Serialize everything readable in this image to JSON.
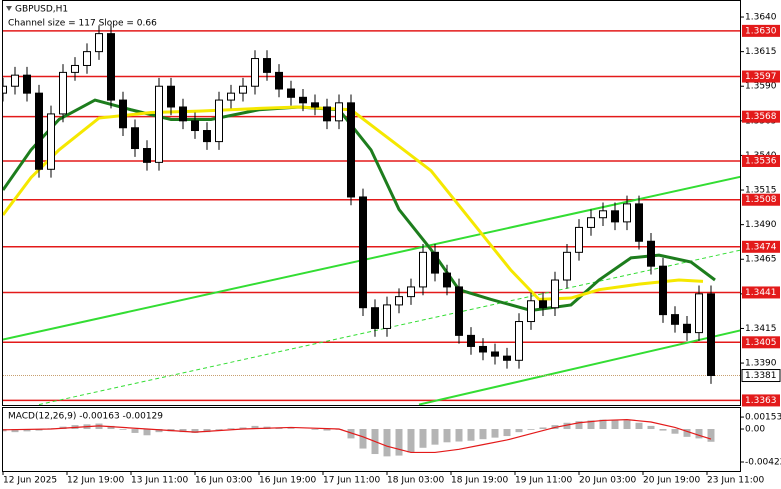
{
  "chart_data": [
    {
      "type": "candlestick",
      "title": "GBPUSD,H1",
      "subtitle": "Channel size = 117 Slope = 0.66",
      "x": [
        0,
        3,
        6,
        9,
        12,
        15,
        18,
        21,
        24,
        27,
        30,
        33,
        36,
        39,
        42,
        45,
        48,
        51,
        54,
        57,
        60,
        63,
        66,
        69,
        72,
        75,
        78,
        81,
        84,
        87,
        90,
        93,
        96,
        99,
        102,
        105,
        108,
        111,
        114,
        117,
        120,
        123,
        126,
        129,
        132,
        135,
        138,
        141,
        144,
        147,
        150,
        153,
        156,
        159,
        162,
        165,
        168,
        171,
        174,
        177
      ],
      "open": [
        1.3585,
        1.359,
        1.3598,
        1.3585,
        1.353,
        1.357,
        1.36,
        1.3605,
        1.3615,
        1.3628,
        1.358,
        1.356,
        1.3545,
        1.3535,
        1.359,
        1.3575,
        1.3565,
        1.3558,
        1.355,
        1.358,
        1.3585,
        1.359,
        1.361,
        1.36,
        1.3588,
        1.3582,
        1.3578,
        1.3575,
        1.3565,
        1.3578,
        1.351,
        1.343,
        1.3415,
        1.3432,
        1.3438,
        1.3445,
        1.347,
        1.3455,
        1.3445,
        1.341,
        1.3402,
        1.3398,
        1.3395,
        1.3392,
        1.342,
        1.3435,
        1.343,
        1.345,
        1.347,
        1.3488,
        1.3495,
        1.35,
        1.3492,
        1.3505,
        1.3478,
        1.346,
        1.3425,
        1.3418,
        1.3412,
        1.344
      ],
      "high": [
        1.3596,
        1.3604,
        1.3604,
        1.3591,
        1.3576,
        1.3606,
        1.3611,
        1.3621,
        1.3634,
        1.3634,
        1.3586,
        1.3566,
        1.3551,
        1.3596,
        1.3596,
        1.3581,
        1.3571,
        1.3564,
        1.3586,
        1.3591,
        1.3596,
        1.3616,
        1.3616,
        1.3606,
        1.3594,
        1.3588,
        1.3584,
        1.3581,
        1.3584,
        1.3584,
        1.3516,
        1.3436,
        1.3438,
        1.3444,
        1.3451,
        1.3476,
        1.3476,
        1.3461,
        1.3451,
        1.3416,
        1.3408,
        1.3404,
        1.3401,
        1.3426,
        1.3441,
        1.3441,
        1.3456,
        1.3476,
        1.3494,
        1.3501,
        1.3506,
        1.3506,
        1.3511,
        1.3511,
        1.3484,
        1.3466,
        1.3431,
        1.3424,
        1.3446,
        1.3446
      ],
      "low": [
        1.3579,
        1.3584,
        1.3579,
        1.3524,
        1.3524,
        1.3564,
        1.3594,
        1.3599,
        1.3609,
        1.3574,
        1.3554,
        1.3539,
        1.3529,
        1.3529,
        1.3569,
        1.3559,
        1.3552,
        1.3544,
        1.3544,
        1.3574,
        1.3579,
        1.3584,
        1.3594,
        1.3582,
        1.3576,
        1.3572,
        1.3569,
        1.3559,
        1.3559,
        1.3504,
        1.3424,
        1.3409,
        1.3409,
        1.3426,
        1.3432,
        1.3439,
        1.3449,
        1.3439,
        1.3404,
        1.3396,
        1.3392,
        1.3389,
        1.3386,
        1.3386,
        1.3414,
        1.3424,
        1.3424,
        1.3444,
        1.3464,
        1.3482,
        1.3489,
        1.3486,
        1.3486,
        1.3472,
        1.3454,
        1.3419,
        1.3412,
        1.3406,
        1.3406,
        1.3375
      ],
      "close": [
        1.359,
        1.3598,
        1.3585,
        1.353,
        1.357,
        1.36,
        1.3605,
        1.3615,
        1.3628,
        1.358,
        1.356,
        1.3545,
        1.3535,
        1.359,
        1.3575,
        1.3565,
        1.3558,
        1.355,
        1.358,
        1.3585,
        1.359,
        1.361,
        1.36,
        1.3588,
        1.3582,
        1.3578,
        1.3575,
        1.3565,
        1.3578,
        1.351,
        1.343,
        1.3415,
        1.3432,
        1.3438,
        1.3445,
        1.347,
        1.3455,
        1.3445,
        1.341,
        1.3402,
        1.3398,
        1.3395,
        1.3392,
        1.342,
        1.3435,
        1.343,
        1.345,
        1.347,
        1.3488,
        1.3495,
        1.35,
        1.3492,
        1.3505,
        1.3478,
        1.346,
        1.3425,
        1.3418,
        1.3412,
        1.344,
        1.3381
      ],
      "xlim": [
        0,
        185
      ],
      "ylim": [
        1.33597,
        1.36523
      ],
      "yticks": [
        {
          "value": 1.364,
          "label": "1.3640"
        },
        1.3615,
        {
          "value": 1.359,
          "label": "1.3590"
        },
        1.3565,
        {
          "value": 1.354,
          "label": "1.3540"
        },
        1.3515,
        {
          "value": 1.349,
          "label": "1.3490"
        },
        1.3465,
        {
          "value": 1.344,
          "label": "1.3440"
        },
        1.3415,
        {
          "value": 1.339,
          "label": "1.3390"
        }
      ],
      "xticks": [
        {
          "value": 0,
          "label": "12 Jun 2025"
        },
        {
          "value": 16,
          "label": "12 Jun 19:00"
        },
        {
          "value": 32,
          "label": "13 Jun 11:00"
        },
        {
          "value": 48,
          "label": "16 Jun 03:00"
        },
        {
          "value": 64,
          "label": "16 Jun 19:00"
        },
        {
          "value": 80,
          "label": "17 Jun 11:00"
        },
        {
          "value": 96,
          "label": "18 Jun 03:00"
        },
        {
          "value": 112,
          "label": "18 Jun 19:00"
        },
        {
          "value": 128,
          "label": "19 Jun 11:00"
        },
        {
          "value": 144,
          "label": "20 Jun 03:00"
        },
        {
          "value": 160,
          "label": "20 Jun 19:00"
        },
        {
          "value": 176,
          "label": "23 Jun 11:00"
        }
      ],
      "levels": [
        {
          "value": 1.363,
          "label": "1.3630"
        },
        {
          "value": 1.3597,
          "label": "1.3597"
        },
        {
          "value": 1.3568,
          "label": "1.3568"
        },
        {
          "value": 1.3536,
          "label": "1.3536"
        },
        {
          "value": 1.3508,
          "label": "1.3508"
        },
        {
          "value": 1.3474,
          "label": "1.3474"
        },
        {
          "value": 1.3441,
          "label": "1.3441"
        },
        {
          "value": 1.3405,
          "label": "1.3405"
        },
        {
          "value": 1.3363,
          "label": "1.3363"
        }
      ],
      "level_color": "#e31a1a",
      "last_price": 1.3381,
      "lines": [
        {
          "color": "#1d7d1d",
          "width": 3,
          "x": [
            0,
            7,
            14,
            23,
            32,
            42,
            52,
            64,
            74,
            84,
            92,
            99,
            107,
            114,
            122,
            132,
            142,
            149,
            157,
            164,
            172,
            178
          ],
          "values": [
            1.3515,
            1.3544,
            1.3566,
            1.358,
            1.3573,
            1.3566,
            1.3566,
            1.3573,
            1.3575,
            1.3573,
            1.3544,
            1.3501,
            1.3472,
            1.3443,
            1.3436,
            1.3428,
            1.3432,
            1.345,
            1.3466,
            1.3468,
            1.3463,
            1.345
          ]
        },
        {
          "color": "#f5e800",
          "width": 3,
          "x": [
            0,
            7,
            14,
            24,
            37,
            49,
            64,
            74,
            87,
            97,
            107,
            117,
            127,
            134,
            142,
            149,
            159,
            169,
            175
          ],
          "values": [
            1.3497,
            1.3524,
            1.3544,
            1.3567,
            1.3571,
            1.3572,
            1.3574,
            1.3575,
            1.3573,
            1.3551,
            1.3529,
            1.3493,
            1.3457,
            1.3436,
            1.3437,
            1.3443,
            1.3447,
            1.345,
            1.3449
          ]
        }
      ],
      "channel_lines": [
        {
          "color": "#33dd33",
          "width": 2,
          "dashed": false,
          "x": [
            0,
            185
          ],
          "values": [
            1.3407,
            1.3525
          ]
        },
        {
          "color": "#33dd33",
          "width": 2,
          "dashed": false,
          "x": [
            104,
            185
          ],
          "values": [
            1.336,
            1.3414
          ]
        },
        {
          "color": "#33dd33",
          "width": 1,
          "dashed": true,
          "x": [
            9,
            185
          ],
          "values": [
            1.336,
            1.3472
          ]
        }
      ]
    },
    {
      "type": "bar",
      "title": "MACD(12,26,9) -0.00163 -0.00129",
      "color": "#b4b4b4",
      "x": [
        0,
        3,
        6,
        9,
        12,
        15,
        18,
        21,
        24,
        27,
        30,
        33,
        36,
        39,
        42,
        45,
        48,
        51,
        54,
        57,
        60,
        63,
        66,
        69,
        72,
        75,
        78,
        81,
        84,
        87,
        90,
        93,
        96,
        99,
        102,
        105,
        108,
        111,
        114,
        117,
        120,
        123,
        126,
        129,
        132,
        135,
        138,
        141,
        144,
        147,
        150,
        153,
        156,
        159,
        162,
        165,
        168,
        171,
        174,
        177
      ],
      "values": [
        -0.0003,
        -0.0004,
        -0.0003,
        -0.0002,
        0.0001,
        0.0003,
        0.0005,
        0.0006,
        0.0007,
        0.0004,
        -0.0001,
        -0.0005,
        -0.0008,
        -0.0004,
        -0.0003,
        -0.0004,
        -0.0005,
        -0.0004,
        -0.0001,
        0.0001,
        0.0002,
        0.0004,
        0.0003,
        0.0002,
        0.0001,
        0.0,
        -0.0001,
        -0.0002,
        -0.0001,
        -0.0012,
        -0.0025,
        -0.0032,
        -0.0035,
        -0.0034,
        -0.003,
        -0.0024,
        -0.002,
        -0.0017,
        -0.0016,
        -0.0015,
        -0.0013,
        -0.0011,
        -0.0009,
        -0.0004,
        -0.0001,
        0.0002,
        0.0005,
        0.0008,
        0.001,
        0.0011,
        0.0012,
        0.0011,
        0.0011,
        0.0008,
        0.0004,
        -0.0002,
        -0.0006,
        -0.001,
        -0.0012,
        -0.00163
      ],
      "signal": {
        "color": "#e31a1a",
        "x": [
          0,
          12,
          24,
          36,
          48,
          60,
          72,
          84,
          90,
          96,
          102,
          108,
          114,
          120,
          126,
          132,
          138,
          144,
          150,
          156,
          162,
          168,
          174,
          177
        ],
        "values": [
          -0.0001,
          0.0,
          0.0004,
          0.0,
          -0.0004,
          0.0,
          0.0002,
          0.0,
          -0.001,
          -0.0022,
          -0.003,
          -0.003,
          -0.0026,
          -0.002,
          -0.0014,
          -0.0006,
          0.0002,
          0.0008,
          0.0011,
          0.0012,
          0.0009,
          0.0002,
          -0.0008,
          -0.00129
        ]
      },
      "xlim": [
        0,
        185
      ],
      "ylim": [
        -0.0055,
        0.00269
      ],
      "yticks": [
        0.00153,
        {
          "value": 0,
          "label": "0.00"
        },
        -0.00422
      ]
    }
  ]
}
